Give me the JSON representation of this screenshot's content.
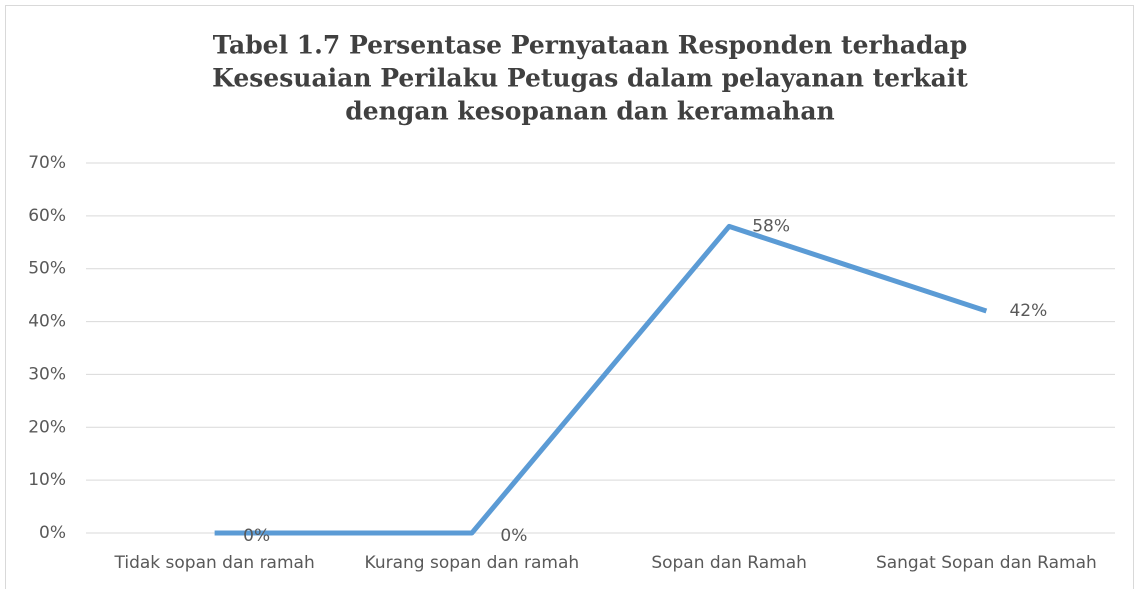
{
  "chart_data": {
    "type": "line",
    "title": [
      "Tabel 1.7 Persentase Pernyataan Responden terhadap",
      "Kesesuaian Perilaku Petugas dalam pelayanan terkait",
      "dengan kesopanan dan keramahan"
    ],
    "categories": [
      "Tidak sopan dan ramah",
      "Kurang sopan dan ramah",
      "Sopan dan Ramah",
      "Sangat Sopan dan Ramah"
    ],
    "values": [
      0,
      0,
      58,
      42
    ],
    "value_labels": [
      "0%",
      "0%",
      "58%",
      "42%"
    ],
    "color": "#5b9bd5",
    "ylim": [
      0,
      70
    ],
    "yticks": [
      {
        "value": 0,
        "label": "0%"
      },
      {
        "value": 10,
        "label": "10%"
      },
      {
        "value": 20,
        "label": "20%"
      },
      {
        "value": 30,
        "label": "30%"
      },
      {
        "value": 40,
        "label": "40%"
      },
      {
        "value": 50,
        "label": "50%"
      },
      {
        "value": 60,
        "label": "60%"
      },
      {
        "value": 70,
        "label": "70%"
      }
    ],
    "grid": true
  }
}
